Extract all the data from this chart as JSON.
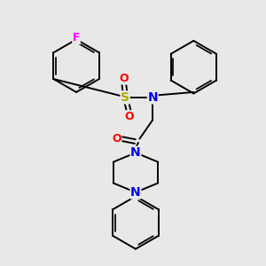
{
  "bg_color": "#e8e8e8",
  "bond_color": "#000000",
  "bond_width": 1.4,
  "atom_colors": {
    "F": "#ff00ff",
    "S": "#aaaa00",
    "O": "#ff0000",
    "N": "#0000ff",
    "C": "#000000"
  },
  "figsize": [
    3.0,
    3.0
  ],
  "dpi": 100,
  "xlim": [
    0,
    10
  ],
  "ylim": [
    0,
    10
  ]
}
